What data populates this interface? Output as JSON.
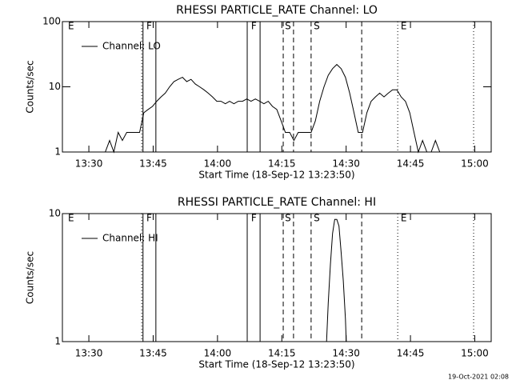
{
  "chart_data": [
    {
      "type": "line",
      "title": "RHESSI PARTICLE_RATE Channel: LO",
      "xlabel": "Start Time (18-Sep-12 13:23:50)",
      "ylabel": "Counts/sec",
      "x": [
        0,
        1,
        2,
        3,
        4,
        5,
        6,
        7,
        8,
        9,
        10,
        11,
        12,
        13,
        14,
        15,
        16,
        17,
        18,
        19,
        20,
        21,
        22,
        23,
        24,
        25,
        26,
        27,
        28,
        29,
        30,
        31,
        32,
        33,
        34,
        35,
        36,
        37,
        38,
        39,
        40,
        41,
        42,
        43,
        44,
        45,
        46,
        47,
        48,
        49,
        50,
        51,
        52,
        53,
        54,
        55,
        56,
        57,
        58,
        59,
        60,
        61,
        62,
        63,
        64,
        65,
        66,
        67,
        68,
        69,
        70,
        71,
        72,
        73,
        74,
        75,
        76,
        77,
        78,
        79,
        80,
        81,
        82,
        83,
        84,
        85,
        86,
        87,
        88,
        89
      ],
      "series": [
        {
          "name": "Channel: LO",
          "color": "#000000",
          "values": [
            1,
            1,
            1,
            1,
            1,
            1,
            1,
            1,
            1,
            1,
            1,
            1.5,
            1,
            2,
            1.5,
            2,
            2,
            2,
            2,
            4,
            4.5,
            5,
            6,
            7,
            8,
            10,
            12,
            13,
            14,
            12,
            13,
            11,
            10,
            9,
            8,
            7,
            6,
            6,
            5.5,
            6,
            5.5,
            6,
            6,
            6.5,
            6,
            6.5,
            6,
            5.5,
            6,
            5,
            4.5,
            3,
            2,
            2,
            1.5,
            2,
            2,
            2,
            2,
            3,
            6,
            10,
            15,
            19,
            22,
            19,
            14,
            8,
            4,
            2,
            2,
            4,
            6,
            7,
            8,
            7,
            8,
            9,
            9,
            7,
            6,
            4,
            2,
            1,
            1.5,
            1,
            1,
            1.5,
            1,
            1
          ]
        }
      ],
      "xlim": [
        0,
        100
      ],
      "ylim": [
        1,
        100
      ],
      "log_y": true,
      "yticks": [
        1,
        10,
        100
      ],
      "xticks": [
        {
          "value": 6.17,
          "label": "13:30"
        },
        {
          "value": 21.17,
          "label": "13:45"
        },
        {
          "value": 36.17,
          "label": "14:00"
        },
        {
          "value": 51.17,
          "label": "14:15"
        },
        {
          "value": 66.17,
          "label": "14:30"
        },
        {
          "value": 81.17,
          "label": "14:45"
        },
        {
          "value": 96.17,
          "label": "15:00"
        }
      ],
      "marker_lines": [
        {
          "x": 18.5,
          "style": "dotted"
        },
        {
          "x": 18.8,
          "style": "solid"
        },
        {
          "x": 21.8,
          "style": "solid"
        },
        {
          "x": 43.1,
          "style": "solid"
        },
        {
          "x": 46.1,
          "style": "solid"
        },
        {
          "x": 51.5,
          "style": "dashed"
        },
        {
          "x": 53.9,
          "style": "dashed"
        },
        {
          "x": 58.0,
          "style": "dashed"
        },
        {
          "x": 69.8,
          "style": "dashed"
        },
        {
          "x": 78.2,
          "style": "dotted"
        },
        {
          "x": 95.9,
          "style": "dotted"
        }
      ],
      "flag_labels": [
        {
          "x": 1.3,
          "label": "E"
        },
        {
          "x": 19.6,
          "label": "F"
        },
        {
          "x": 44.0,
          "label": "F"
        },
        {
          "x": 51.9,
          "label": "S"
        },
        {
          "x": 58.6,
          "label": "S"
        },
        {
          "x": 78.9,
          "label": "E"
        }
      ]
    },
    {
      "type": "line",
      "title": "RHESSI PARTICLE_RATE Channel: HI",
      "xlabel": "Start Time (18-Sep-12 13:23:50)",
      "ylabel": "Counts/sec",
      "x": [
        61.6,
        62,
        62.5,
        63,
        63.5,
        64,
        64.5,
        65,
        65.5,
        66,
        66.2
      ],
      "series": [
        {
          "name": "Channel: HI",
          "color": "#000000",
          "values": [
            1,
            2,
            4,
            7,
            9,
            9,
            8,
            5,
            3,
            1.5,
            1
          ]
        }
      ],
      "xlim": [
        0,
        100
      ],
      "ylim": [
        1,
        10
      ],
      "log_y": true,
      "yticks": [
        1,
        10
      ],
      "xticks": [
        {
          "value": 6.17,
          "label": "13:30"
        },
        {
          "value": 21.17,
          "label": "13:45"
        },
        {
          "value": 36.17,
          "label": "14:00"
        },
        {
          "value": 51.17,
          "label": "14:15"
        },
        {
          "value": 66.17,
          "label": "14:30"
        },
        {
          "value": 81.17,
          "label": "14:45"
        },
        {
          "value": 96.17,
          "label": "15:00"
        }
      ],
      "marker_lines": [
        {
          "x": 18.5,
          "style": "dotted"
        },
        {
          "x": 18.8,
          "style": "solid"
        },
        {
          "x": 21.8,
          "style": "solid"
        },
        {
          "x": 43.1,
          "style": "solid"
        },
        {
          "x": 46.1,
          "style": "solid"
        },
        {
          "x": 51.5,
          "style": "dashed"
        },
        {
          "x": 53.9,
          "style": "dashed"
        },
        {
          "x": 58.0,
          "style": "dashed"
        },
        {
          "x": 69.8,
          "style": "dashed"
        },
        {
          "x": 78.2,
          "style": "dotted"
        },
        {
          "x": 95.9,
          "style": "dotted"
        }
      ],
      "flag_labels": [
        {
          "x": 1.3,
          "label": "E"
        },
        {
          "x": 19.6,
          "label": "F"
        },
        {
          "x": 44.0,
          "label": "F"
        },
        {
          "x": 51.9,
          "label": "S"
        },
        {
          "x": 58.6,
          "label": "S"
        },
        {
          "x": 78.9,
          "label": "E"
        }
      ]
    }
  ],
  "footer": "19-Oct-2021 02:08"
}
